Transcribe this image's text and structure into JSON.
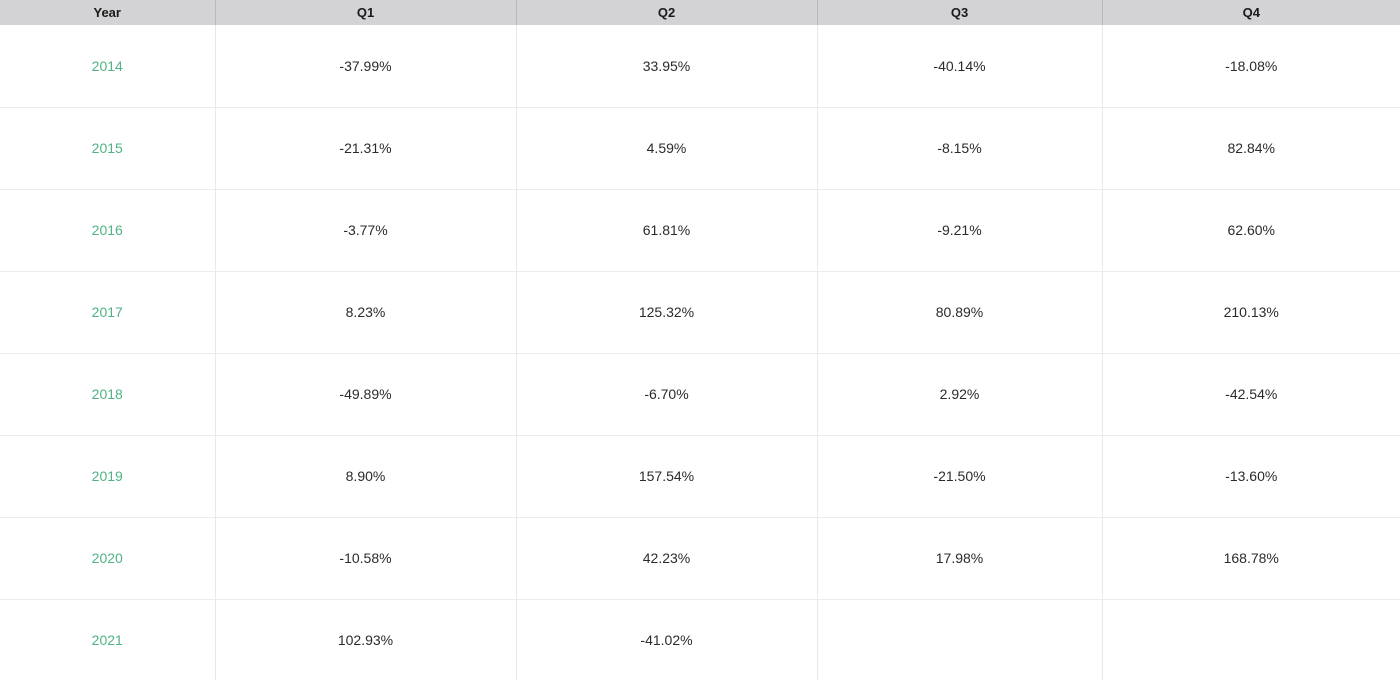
{
  "table": {
    "columns": [
      {
        "key": "year",
        "label": "Year"
      },
      {
        "key": "q1",
        "label": "Q1"
      },
      {
        "key": "q2",
        "label": "Q2"
      },
      {
        "key": "q3",
        "label": "Q3"
      },
      {
        "key": "q4",
        "label": "Q4"
      }
    ],
    "rows": [
      {
        "year": "2014",
        "q1": "-37.99%",
        "q2": "33.95%",
        "q3": "-40.14%",
        "q4": "-18.08%"
      },
      {
        "year": "2015",
        "q1": "-21.31%",
        "q2": "4.59%",
        "q3": "-8.15%",
        "q4": "82.84%"
      },
      {
        "year": "2016",
        "q1": "-3.77%",
        "q2": "61.81%",
        "q3": "-9.21%",
        "q4": "62.60%"
      },
      {
        "year": "2017",
        "q1": "8.23%",
        "q2": "125.32%",
        "q3": "80.89%",
        "q4": "210.13%"
      },
      {
        "year": "2018",
        "q1": "-49.89%",
        "q2": "-6.70%",
        "q3": "2.92%",
        "q4": "-42.54%"
      },
      {
        "year": "2019",
        "q1": "8.90%",
        "q2": "157.54%",
        "q3": "-21.50%",
        "q4": "-13.60%"
      },
      {
        "year": "2020",
        "q1": "-10.58%",
        "q2": "42.23%",
        "q3": "17.98%",
        "q4": "168.78%"
      },
      {
        "year": "2021",
        "q1": "102.93%",
        "q2": "-41.02%",
        "q3": "",
        "q4": ""
      }
    ]
  },
  "colors": {
    "header_background": "#d3d3d6",
    "header_text": "#1a1a1a",
    "body_text": "#2b2b2b",
    "year_link_green": "#4fb383",
    "row_separator": "#ececec",
    "body_column_separator": "#e8e8e8",
    "header_column_separator": "#b9b9bd"
  }
}
